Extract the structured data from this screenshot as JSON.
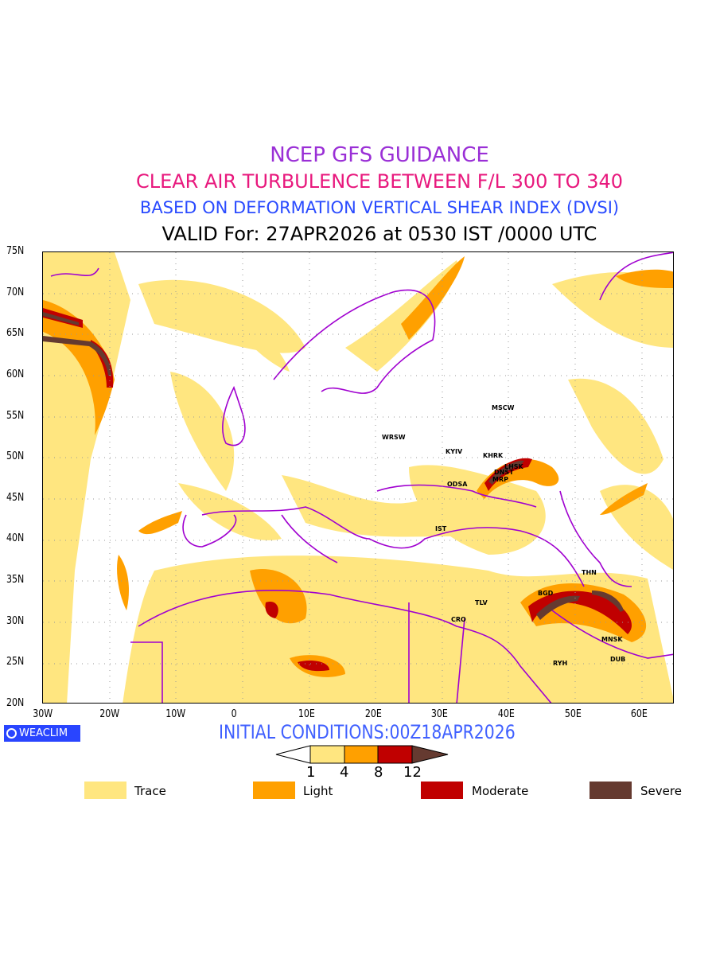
{
  "title": {
    "line1": "NCEP GFS GUIDANCE",
    "line2": "CLEAR AIR TURBULENCE BETWEEN F/L 300 TO 340",
    "line3": "BASED ON DEFORMATION VERTICAL SHEAR INDEX (DVSI)",
    "line4": "VALID For: 27APR2026 at 0530 IST /0000 UTC"
  },
  "axes": {
    "lat_labels": [
      "75N",
      "70N",
      "65N",
      "60N",
      "55N",
      "50N",
      "45N",
      "40N",
      "35N",
      "30N",
      "25N",
      "20N"
    ],
    "lon_labels": [
      "30W",
      "20W",
      "10W",
      "0",
      "10E",
      "20E",
      "30E",
      "40E",
      "50E",
      "60E"
    ],
    "lat_range": [
      20,
      75
    ],
    "lon_range": [
      -30,
      65
    ]
  },
  "cities": [
    "MSCW",
    "WRSW",
    "KYIV",
    "KHRK",
    "LHSK",
    "DNST",
    "MRP",
    "ODSA",
    "IST",
    "TLV",
    "CRO",
    "THN",
    "BGD",
    "MNSK",
    "DUB",
    "RYH"
  ],
  "brand": "WEACLIM",
  "initial_conditions": "INITIAL CONDITIONS:00Z18APR2026",
  "colorbar": {
    "ticks": [
      "1",
      "4",
      "8",
      "12"
    ],
    "colors": [
      "#ffe680",
      "#ffa000",
      "#c00000",
      "#653a30"
    ]
  },
  "legend": [
    {
      "label": "Trace",
      "color": "#ffe680"
    },
    {
      "label": "Light",
      "color": "#ffa000"
    },
    {
      "label": "Moderate",
      "color": "#c00000"
    },
    {
      "label": "Severe",
      "color": "#653a30"
    }
  ],
  "colors": {
    "coastline": "#a000d0",
    "grid": "#999999"
  }
}
